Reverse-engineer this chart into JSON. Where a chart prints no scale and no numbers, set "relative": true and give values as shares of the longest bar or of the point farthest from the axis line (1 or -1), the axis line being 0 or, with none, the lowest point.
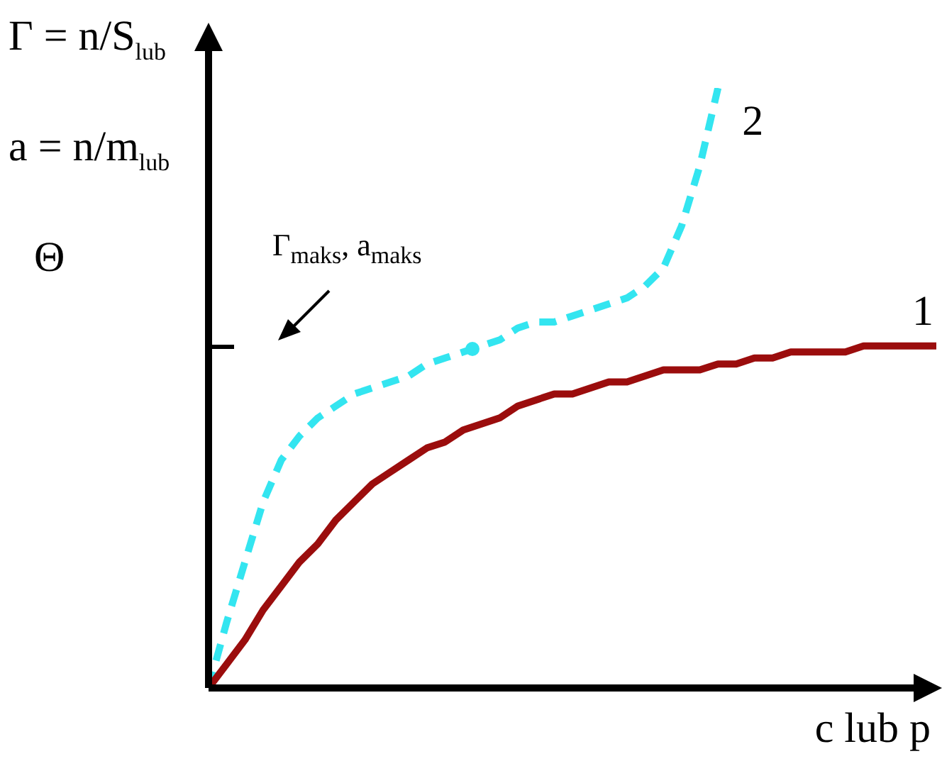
{
  "chart_data": {
    "type": "line",
    "relative": true,
    "ylabel": "Γ = n/S$_{lub}$\na = n/m$_{lub}$\nΘ",
    "xlabel": "c lub p",
    "categories": [
      null,
      null,
      null,
      null,
      null,
      null,
      null,
      null,
      null,
      null,
      null,
      null,
      null,
      null,
      null,
      null,
      null,
      null,
      null,
      null,
      null,
      null,
      null,
      null,
      null,
      null,
      null,
      null,
      null,
      null,
      null,
      null,
      null,
      null,
      null,
      null,
      null,
      null,
      null,
      null,
      null
    ],
    "series": [
      {
        "name": "1",
        "color": "#9b0d0d",
        "line_style": "solid",
        "marker": "none",
        "values": [
          0,
          0.04,
          0.08,
          0.13,
          0.17,
          0.21,
          0.24,
          0.28,
          0.31,
          0.34,
          0.36,
          0.38,
          0.4,
          0.41,
          0.43,
          0.44,
          0.45,
          0.47,
          0.48,
          0.49,
          0.49,
          0.5,
          0.51,
          0.51,
          0.52,
          0.53,
          0.53,
          0.53,
          0.54,
          0.54,
          0.55,
          0.55,
          0.56,
          0.56,
          0.56,
          0.56,
          0.57,
          0.57,
          0.57,
          0.57,
          0.57
        ]
      },
      {
        "name": "2",
        "color": "#33e5f0",
        "line_style": "dashed",
        "marker": "none",
        "values": [
          0,
          0.11,
          0.21,
          0.31,
          0.38,
          0.42,
          0.45,
          0.47,
          0.49,
          0.5,
          0.51,
          0.52,
          0.54,
          0.55,
          0.56,
          0.57,
          0.58,
          0.6,
          0.61,
          0.61,
          0.62,
          0.63,
          0.64,
          0.65,
          0.67,
          0.7,
          0.77,
          0.87,
          1,
          null,
          null,
          null,
          null,
          null,
          null,
          null,
          null,
          null,
          null,
          null,
          null
        ]
      }
    ],
    "annotations": [
      "Γ$_{maks}$, a$_{maks}$"
    ]
  }
}
